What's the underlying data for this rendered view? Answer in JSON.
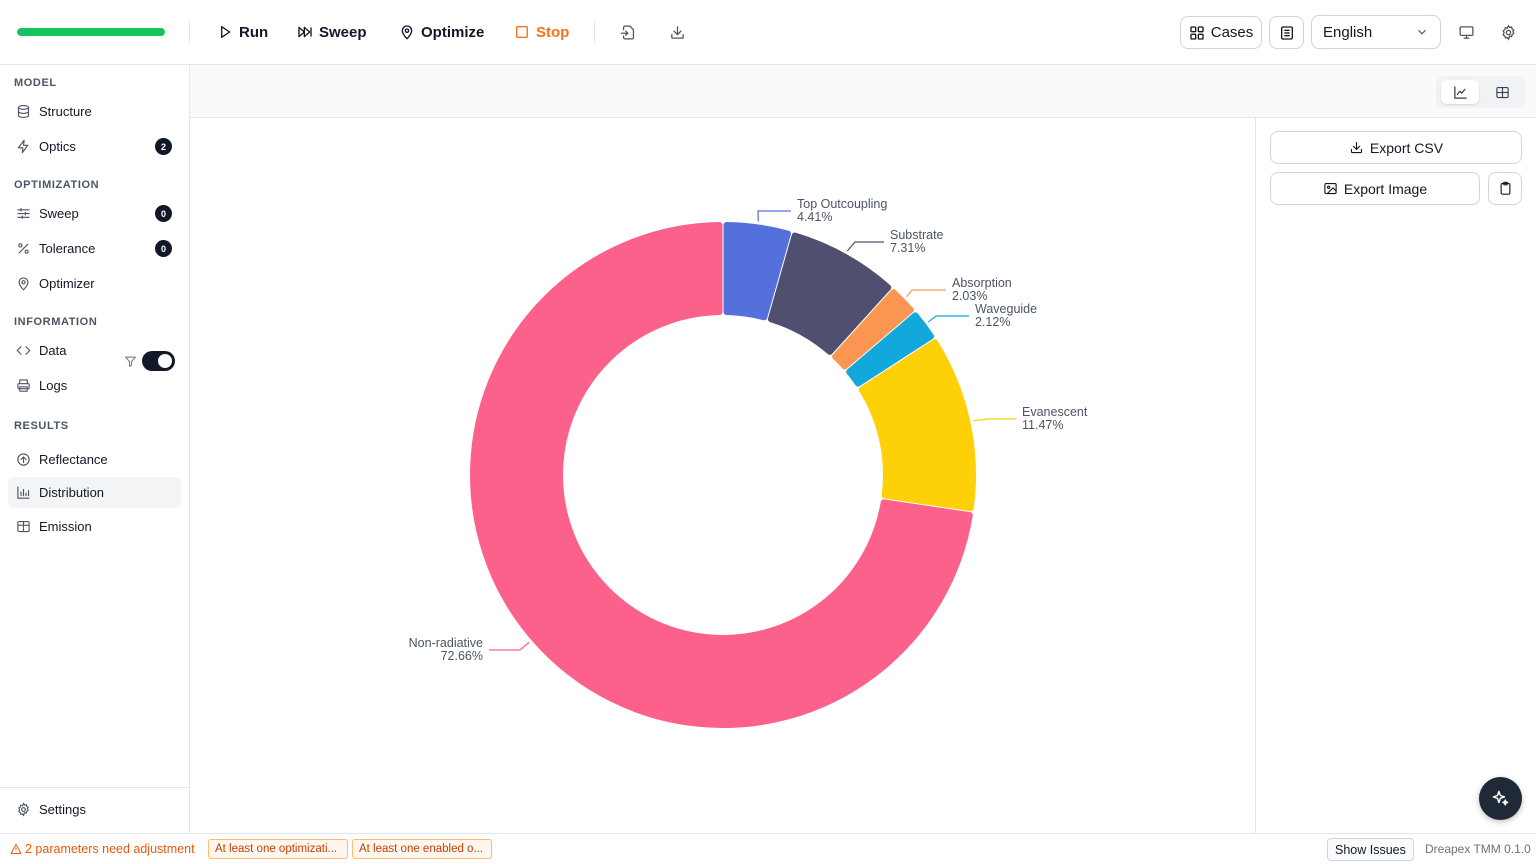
{
  "toolbar": {
    "progress": 1.0,
    "run_label": "Run",
    "sweep_label": "Sweep",
    "optimize_label": "Optimize",
    "stop_label": "Stop",
    "cases_label": "Cases",
    "language": "English",
    "progress_color": "#16c35a",
    "stop_color": "#f97316"
  },
  "sidebar": {
    "model_heading": "MODEL",
    "structure_label": "Structure",
    "optics_label": "Optics",
    "optics_badge": "2",
    "optimization_heading": "OPTIMIZATION",
    "sweep_label": "Sweep",
    "sweep_badge": "0",
    "tolerance_label": "Tolerance",
    "tolerance_badge": "0",
    "optimizer_label": "Optimizer",
    "information_heading": "INFORMATION",
    "data_label": "Data",
    "logs_label": "Logs",
    "results_heading": "RESULTS",
    "results_toggle_on": true,
    "reflectance_label": "Reflectance",
    "distribution_label": "Distribution",
    "emission_label": "Emission",
    "settings_label": "Settings"
  },
  "right_panel": {
    "export_csv_label": "Export CSV",
    "export_image_label": "Export Image"
  },
  "status": {
    "warning_text": "2 parameters need adjustment",
    "chip1": "At least one optimizati...",
    "chip2": "At least one enabled o...",
    "show_issues_label": "Show Issues",
    "version": "Dreapex TMM 0.1.0"
  },
  "chart_data": {
    "type": "pie",
    "donut": true,
    "slices": [
      {
        "name": "Top Outcoupling",
        "value": 4.41,
        "label": "4.41%",
        "color": "#5470dc"
      },
      {
        "name": "Substrate",
        "value": 7.31,
        "label": "7.31%",
        "color": "#4f5070"
      },
      {
        "name": "Absorption",
        "value": 2.03,
        "label": "2.03%",
        "color": "#fb9652"
      },
      {
        "name": "Waveguide",
        "value": 2.12,
        "label": "2.12%",
        "color": "#12a8dc"
      },
      {
        "name": "Evanescent",
        "value": 11.47,
        "label": "11.47%",
        "color": "#fdd007"
      },
      {
        "name": "Non-radiative",
        "value": 72.66,
        "label": "72.66%",
        "color": "#fb618a"
      }
    ]
  }
}
